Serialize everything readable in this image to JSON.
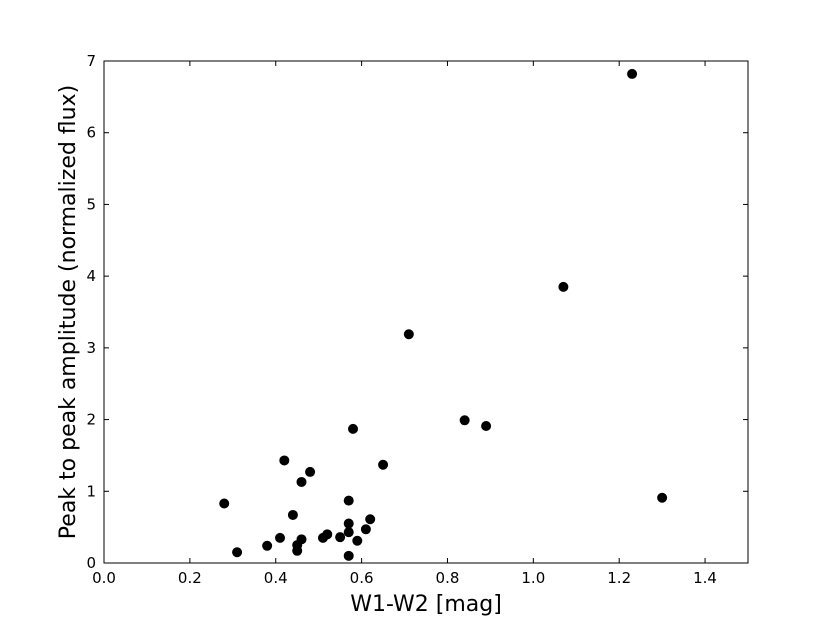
{
  "chart_data": {
    "type": "scatter",
    "title": "",
    "xlabel": "W1-W2 [mag]",
    "ylabel": "Peak to peak amplitude (normalized flux)",
    "xlim": [
      0.0,
      1.5
    ],
    "ylim": [
      0,
      7
    ],
    "xticks": [
      0.0,
      0.2,
      0.4,
      0.6,
      0.8,
      1.0,
      1.2,
      1.4
    ],
    "xtick_labels": [
      "0.0",
      "0.2",
      "0.4",
      "0.6",
      "0.8",
      "1.0",
      "1.2",
      "1.4"
    ],
    "yticks": [
      0,
      1,
      2,
      3,
      4,
      5,
      6,
      7
    ],
    "ytick_labels": [
      "0",
      "1",
      "2",
      "3",
      "4",
      "5",
      "6",
      "7"
    ],
    "grid": false,
    "legend": false,
    "marker_color": "#000000",
    "points": [
      {
        "x": 0.28,
        "y": 0.83
      },
      {
        "x": 0.31,
        "y": 0.15
      },
      {
        "x": 0.38,
        "y": 0.24
      },
      {
        "x": 0.41,
        "y": 0.35
      },
      {
        "x": 0.42,
        "y": 1.43
      },
      {
        "x": 0.44,
        "y": 0.67
      },
      {
        "x": 0.45,
        "y": 0.25
      },
      {
        "x": 0.45,
        "y": 0.17
      },
      {
        "x": 0.46,
        "y": 0.33
      },
      {
        "x": 0.46,
        "y": 1.13
      },
      {
        "x": 0.48,
        "y": 1.27
      },
      {
        "x": 0.51,
        "y": 0.35
      },
      {
        "x": 0.52,
        "y": 0.4
      },
      {
        "x": 0.55,
        "y": 0.36
      },
      {
        "x": 0.57,
        "y": 0.87
      },
      {
        "x": 0.57,
        "y": 0.55
      },
      {
        "x": 0.57,
        "y": 0.43
      },
      {
        "x": 0.57,
        "y": 0.1
      },
      {
        "x": 0.58,
        "y": 1.87
      },
      {
        "x": 0.59,
        "y": 0.31
      },
      {
        "x": 0.61,
        "y": 0.47
      },
      {
        "x": 0.62,
        "y": 0.61
      },
      {
        "x": 0.65,
        "y": 1.37
      },
      {
        "x": 0.71,
        "y": 3.19
      },
      {
        "x": 0.84,
        "y": 1.99
      },
      {
        "x": 0.89,
        "y": 1.91
      },
      {
        "x": 1.07,
        "y": 3.85
      },
      {
        "x": 1.23,
        "y": 6.82
      },
      {
        "x": 1.3,
        "y": 0.91
      }
    ]
  }
}
